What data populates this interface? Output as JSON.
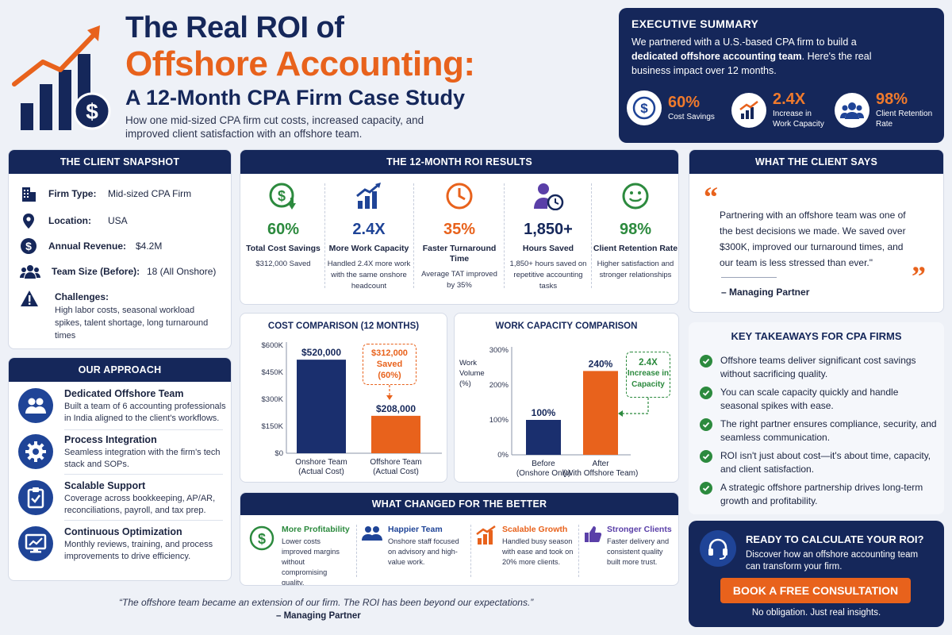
{
  "header": {
    "title_line1": "The Real ROI of",
    "title_line2": "Offshore Accounting:",
    "title_line3": "A 12-Month CPA Firm Case Study",
    "subtitle": "How one mid-sized CPA firm cut costs, increased capacity, and improved client satisfaction with an offshore team."
  },
  "executive_summary": {
    "title": "EXECUTIVE SUMMARY",
    "text_before": "We partnered with a U.S.-based CPA firm to build a ",
    "text_bold": "dedicated offshore accounting team",
    "text_after": ". Here's the real business impact over 12 months.",
    "stats": [
      {
        "value": "60%",
        "label": "Cost Savings",
        "icon": "dollar-icon"
      },
      {
        "value": "2.4X",
        "label": "Increase in Work Capacity",
        "icon": "growth-chart-icon"
      },
      {
        "value": "98%",
        "label": "Client Retention Rate",
        "icon": "team-icon"
      }
    ]
  },
  "client_snapshot": {
    "title": "THE CLIENT SNAPSHOT",
    "rows": [
      {
        "key": "Firm Type:",
        "value": "Mid-sized CPA Firm",
        "icon": "building-icon"
      },
      {
        "key": "Location:",
        "value": "USA",
        "icon": "location-pin-icon"
      },
      {
        "key": "Annual Revenue:",
        "value": "$4.2M",
        "icon": "dollar-icon"
      },
      {
        "key": "Team Size (Before):",
        "value": "18 (All Onshore)",
        "icon": "team-icon"
      }
    ],
    "challenges_title": "Challenges:",
    "challenges_text": "High labor costs, seasonal workload spikes, talent shortage, long turnaround times"
  },
  "approach": {
    "title": "OUR APPROACH",
    "items": [
      {
        "title": "Dedicated Offshore Team",
        "text": "Built a team of 6 accounting professionals in India aligned to the client's workflows.",
        "icon": "people-icon"
      },
      {
        "title": "Process Integration",
        "text": "Seamless integration with the firm's tech stack and SOPs.",
        "icon": "gear-icon"
      },
      {
        "title": "Scalable Support",
        "text": "Coverage across bookkeeping, AP/AR, reconciliations, payroll, and tax prep.",
        "icon": "clipboard-check-icon"
      },
      {
        "title": "Continuous Optimization",
        "text": "Monthly reviews, training, and process improvements to drive efficiency.",
        "icon": "monitor-chart-icon"
      }
    ]
  },
  "roi_results": {
    "title": "THE 12-MONTH ROI RESULTS",
    "items": [
      {
        "value": "60%",
        "title": "Total Cost Savings",
        "text": "$312,000 Saved",
        "icon": "dollar-down-icon",
        "color": "#2c8a3e"
      },
      {
        "value": "2.4X",
        "title": "More Work Capacity",
        "text": "Handled 2.4X more work with the same onshore headcount",
        "icon": "bar-growth-icon",
        "color": "#1f4497"
      },
      {
        "value": "35%",
        "title": "Faster Turnaround Time",
        "text": "Average TAT improved by 35%",
        "icon": "clock-icon",
        "color": "#e8621c"
      },
      {
        "value": "1,850+",
        "title": "Hours Saved",
        "text": "1,850+ hours saved on repetitive accounting tasks",
        "icon": "person-clock-icon",
        "color": "#15275a"
      },
      {
        "value": "98%",
        "title": "Client Retention Rate",
        "text": "Higher satisfaction and stronger relationships",
        "icon": "smiley-icon",
        "color": "#2c8a3e"
      }
    ]
  },
  "chart_data": [
    {
      "type": "bar",
      "title": "COST COMPARISON (12 MONTHS)",
      "categories": [
        "Onshore Team (Actual Cost)",
        "Offshore Team (Actual Cost)"
      ],
      "category_lines": [
        [
          "Onshore Team",
          "(Actual Cost)"
        ],
        [
          "Offshore Team",
          "(Actual Cost)"
        ]
      ],
      "values": [
        520000,
        208000
      ],
      "value_labels": [
        "$520,000",
        "$208,000"
      ],
      "colors": [
        "#1a2f6e",
        "#e8621c"
      ],
      "yticks": [
        "$0",
        "$150K",
        "$300K",
        "$450K",
        "$600K"
      ],
      "ylim": [
        0,
        600000
      ],
      "annotation": [
        "$312,000",
        "Saved",
        "(60%)"
      ],
      "grid": false
    },
    {
      "type": "bar",
      "title": "WORK CAPACITY COMPARISON",
      "ylabel_lines": [
        "Work",
        "Volume",
        "(%)"
      ],
      "categories": [
        "Before (Onshore Only)",
        "After (With Offshore Team)"
      ],
      "category_lines": [
        [
          "Before",
          "(Onshore Only)"
        ],
        [
          "After",
          "(With Offshore Team)"
        ]
      ],
      "values": [
        100,
        240
      ],
      "value_labels": [
        "100%",
        "240%"
      ],
      "colors": [
        "#1a2f6e",
        "#e8621c"
      ],
      "yticks": [
        "0%",
        "100%",
        "200%",
        "300%"
      ],
      "ylim": [
        0,
        300
      ],
      "annotation": [
        "2.4X",
        "Increase in",
        "Capacity"
      ],
      "grid": false
    }
  ],
  "changes": {
    "title": "WHAT CHANGED FOR THE BETTER",
    "items": [
      {
        "title": "More Profitability",
        "text": "Lower costs improved margins without compromising quality.",
        "icon": "dollar-circle-icon",
        "color": "#2c8a3e"
      },
      {
        "title": "Happier Team",
        "text": "Onshore staff focused on advisory and high-value work.",
        "icon": "people-icon",
        "color": "#1f4497"
      },
      {
        "title": "Scalable Growth",
        "text": "Handled busy season with ease and took on 20% more clients.",
        "icon": "bar-growth-icon",
        "color": "#e8621c"
      },
      {
        "title": "Stronger Clients",
        "text": "Faster delivery and consistent quality built more trust.",
        "icon": "thumbs-up-icon",
        "color": "#5a3fa8"
      }
    ]
  },
  "testimonial": {
    "title": "WHAT THE CLIENT SAYS",
    "quote": "Partnering with an offshore team was one of the best decisions we made. We saved over $300K, improved our turnaround times, and our team is less stressed than ever.\"",
    "author": "– Managing Partner"
  },
  "takeaways": {
    "title": "KEY TAKEAWAYS FOR CPA FIRMS",
    "items": [
      "Offshore teams deliver significant cost savings without sacrificing quality.",
      "You can scale capacity quickly and handle seasonal spikes with ease.",
      "The right partner ensures compliance, security, and seamless communication.",
      "ROI isn't just about cost—it's about time, capacity, and client satisfaction.",
      "A strategic offshore partnership drives long-term growth and profitability."
    ]
  },
  "cta": {
    "title": "READY TO CALCULATE YOUR ROI?",
    "text": "Discover how an offshore accounting team can transform your firm.",
    "button": "BOOK A FREE CONSULTATION",
    "note": "No obligation. Just real insights."
  },
  "footer_quote": {
    "text": "“The offshore team became an extension of our firm. The ROI has been beyond our expectations.”",
    "author": "– Managing Partner"
  }
}
